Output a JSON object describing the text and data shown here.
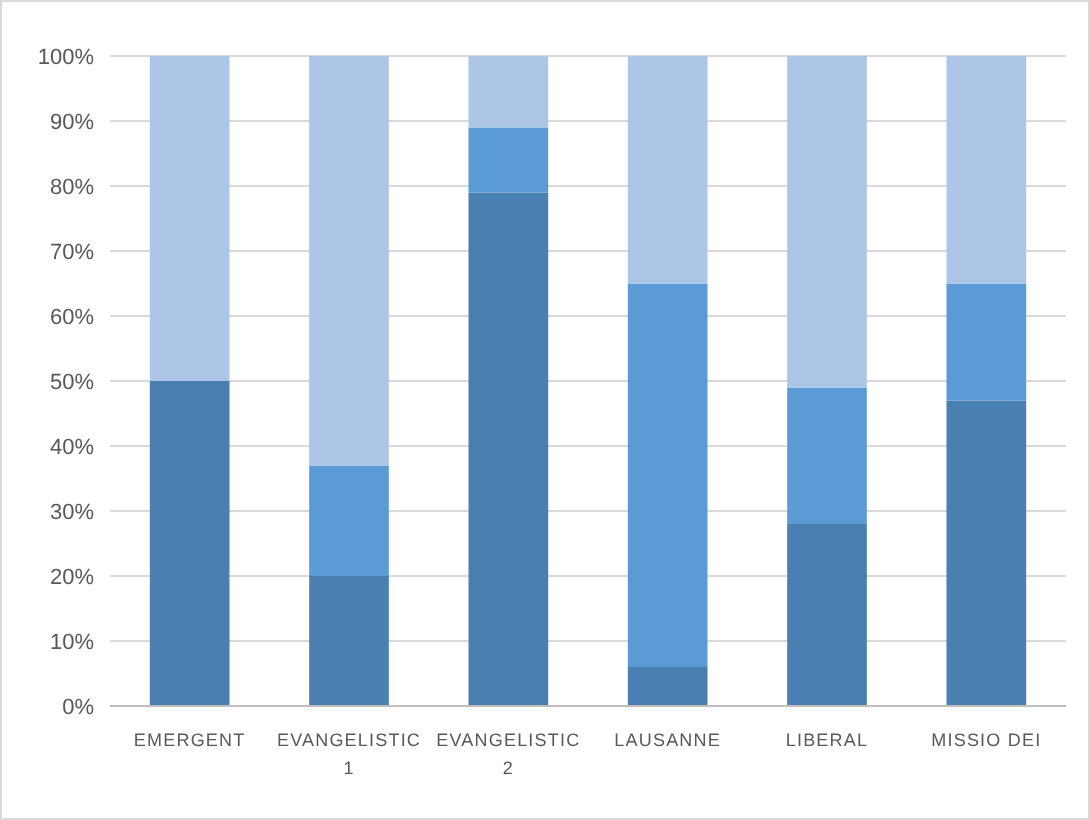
{
  "chart_data": {
    "type": "bar",
    "stacked": true,
    "categories": [
      "EMERGENT",
      "EVANGELISTIC 1",
      "EVANGELISTIC 2",
      "LAUSANNE",
      "LIBERAL",
      "MISSIO DEI"
    ],
    "series": [
      {
        "color": "#4a7fb1",
        "values": [
          50,
          20,
          79,
          6,
          28,
          47
        ]
      },
      {
        "color": "#5b9bd5",
        "values": [
          0,
          17,
          10,
          59,
          21,
          18
        ]
      },
      {
        "color": "#adc5e7",
        "values": [
          50,
          63,
          11,
          35,
          51,
          35
        ]
      }
    ],
    "ylim": [
      0,
      100
    ],
    "yticks": [
      {
        "value": 0,
        "label": "0%"
      },
      {
        "value": 10,
        "label": "10%"
      },
      {
        "value": 20,
        "label": "20%"
      },
      {
        "value": 30,
        "label": "30%"
      },
      {
        "value": 40,
        "label": "40%"
      },
      {
        "value": 50,
        "label": "50%"
      },
      {
        "value": 60,
        "label": "60%"
      },
      {
        "value": 70,
        "label": "70%"
      },
      {
        "value": 80,
        "label": "80%"
      },
      {
        "value": 90,
        "label": "90%"
      },
      {
        "value": 100,
        "label": "100%"
      }
    ],
    "grid": "y"
  }
}
